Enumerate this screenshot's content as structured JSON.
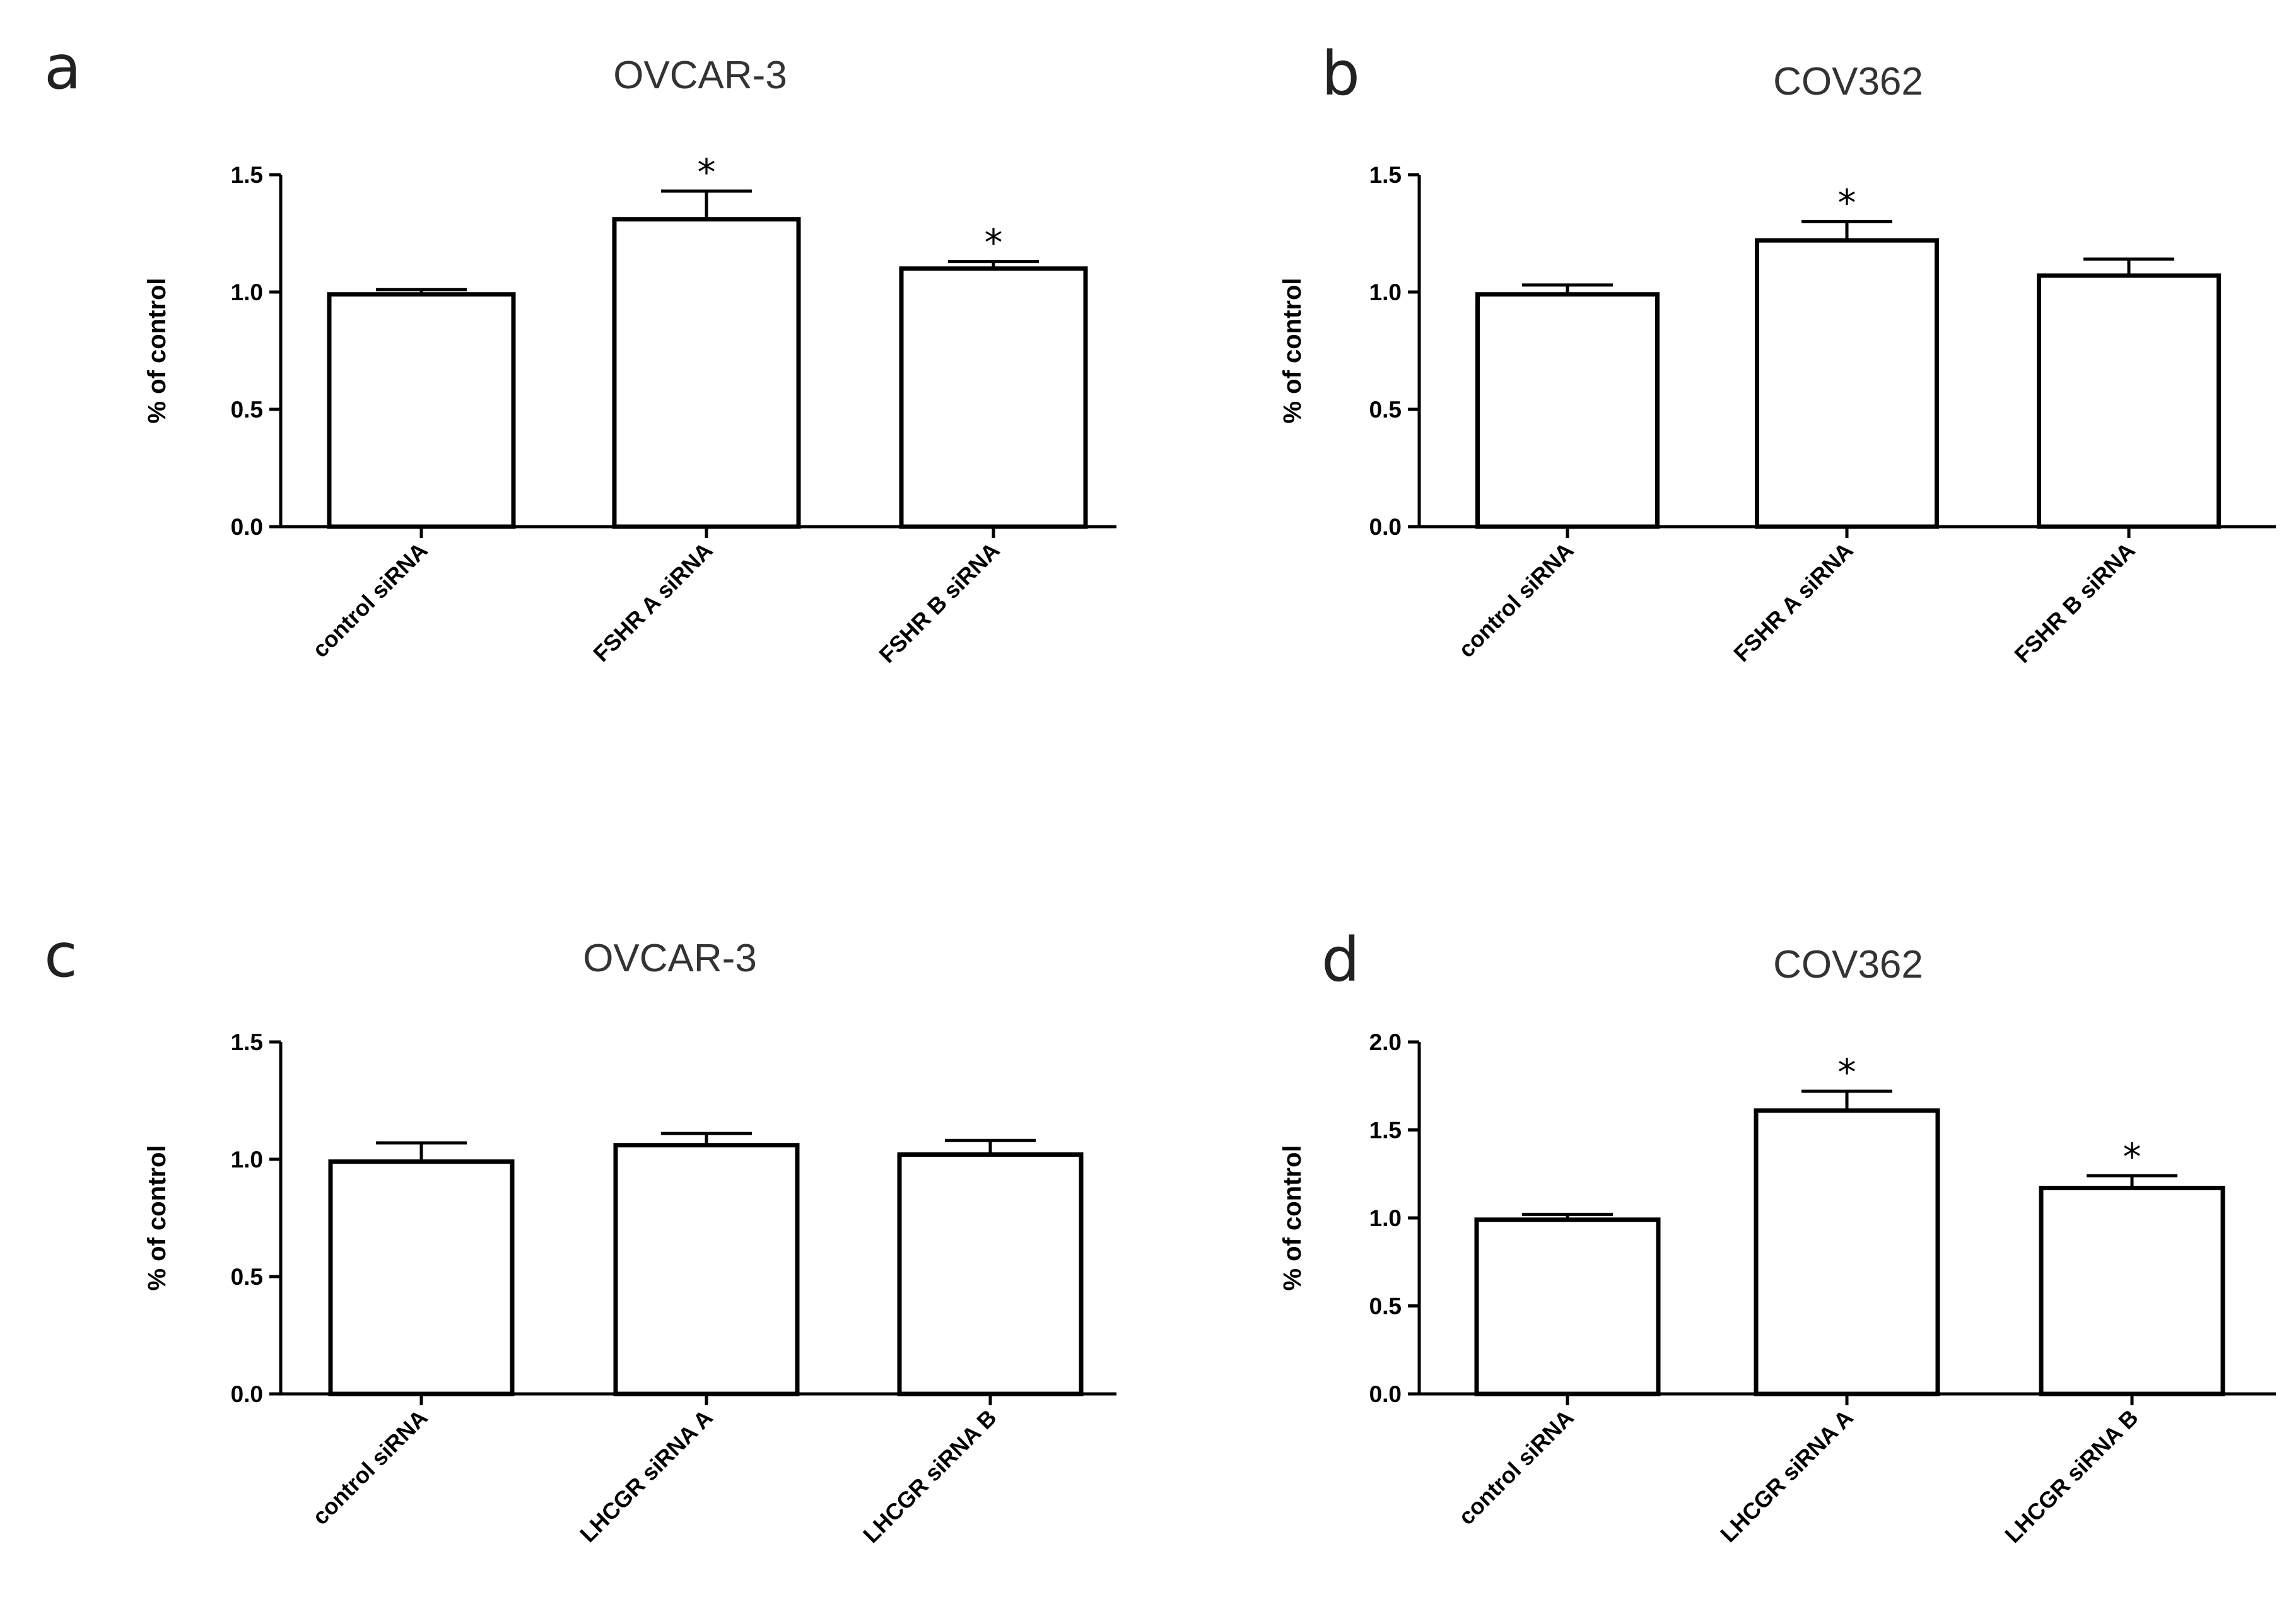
{
  "chart_data": [
    {
      "panel": "a",
      "type": "bar",
      "title": "OVCAR-3",
      "ylabel": "% of control",
      "categories": [
        "control siRNA",
        "FSHR A siRNA",
        "FSHR B siRNA"
      ],
      "values": [
        0.99,
        1.31,
        1.1
      ],
      "errors": [
        0.02,
        0.12,
        0.03
      ],
      "significance": [
        "",
        "*",
        "*"
      ],
      "ylim": [
        0.0,
        1.5
      ],
      "yticks": [
        0.0,
        0.5,
        1.0,
        1.5
      ],
      "ytick_labels": [
        "0.0",
        "0.5",
        "1.0",
        "1.5"
      ]
    },
    {
      "panel": "b",
      "type": "bar",
      "title": "COV362",
      "ylabel": "% of control",
      "categories": [
        "control siRNA",
        "FSHR A siRNA",
        "FSHR B siRNA"
      ],
      "values": [
        0.99,
        1.22,
        1.07
      ],
      "errors": [
        0.04,
        0.08,
        0.07
      ],
      "significance": [
        "",
        "*",
        ""
      ],
      "ylim": [
        0.0,
        1.5
      ],
      "yticks": [
        0.0,
        0.5,
        1.0,
        1.5
      ],
      "ytick_labels": [
        "0.0",
        "0.5",
        "1.0",
        "1.5"
      ]
    },
    {
      "panel": "c",
      "type": "bar",
      "title": "OVCAR-3",
      "ylabel": "% of control",
      "categories": [
        "control siRNA",
        "LHCGR siRNA A",
        "LHCGR siRNA B"
      ],
      "values": [
        0.99,
        1.06,
        1.02
      ],
      "errors": [
        0.08,
        0.05,
        0.06
      ],
      "significance": [
        "",
        "",
        ""
      ],
      "ylim": [
        0.0,
        1.5
      ],
      "yticks": [
        0.0,
        0.5,
        1.0,
        1.5
      ],
      "ytick_labels": [
        "0.0",
        "0.5",
        "1.0",
        "1.5"
      ]
    },
    {
      "panel": "d",
      "type": "bar",
      "title": "COV362",
      "ylabel": "% of control",
      "categories": [
        "control siRNA",
        "LHCGR siRNA A",
        "LHCGR siRNA B"
      ],
      "values": [
        0.99,
        1.61,
        1.17
      ],
      "errors": [
        0.03,
        0.11,
        0.07
      ],
      "significance": [
        "",
        "*",
        "*"
      ],
      "ylim": [
        0.0,
        2.0
      ],
      "yticks": [
        0.0,
        0.5,
        1.0,
        1.5,
        2.0
      ],
      "ytick_labels": [
        "0.0",
        "0.5",
        "1.0",
        "1.5",
        "2.0"
      ]
    }
  ]
}
